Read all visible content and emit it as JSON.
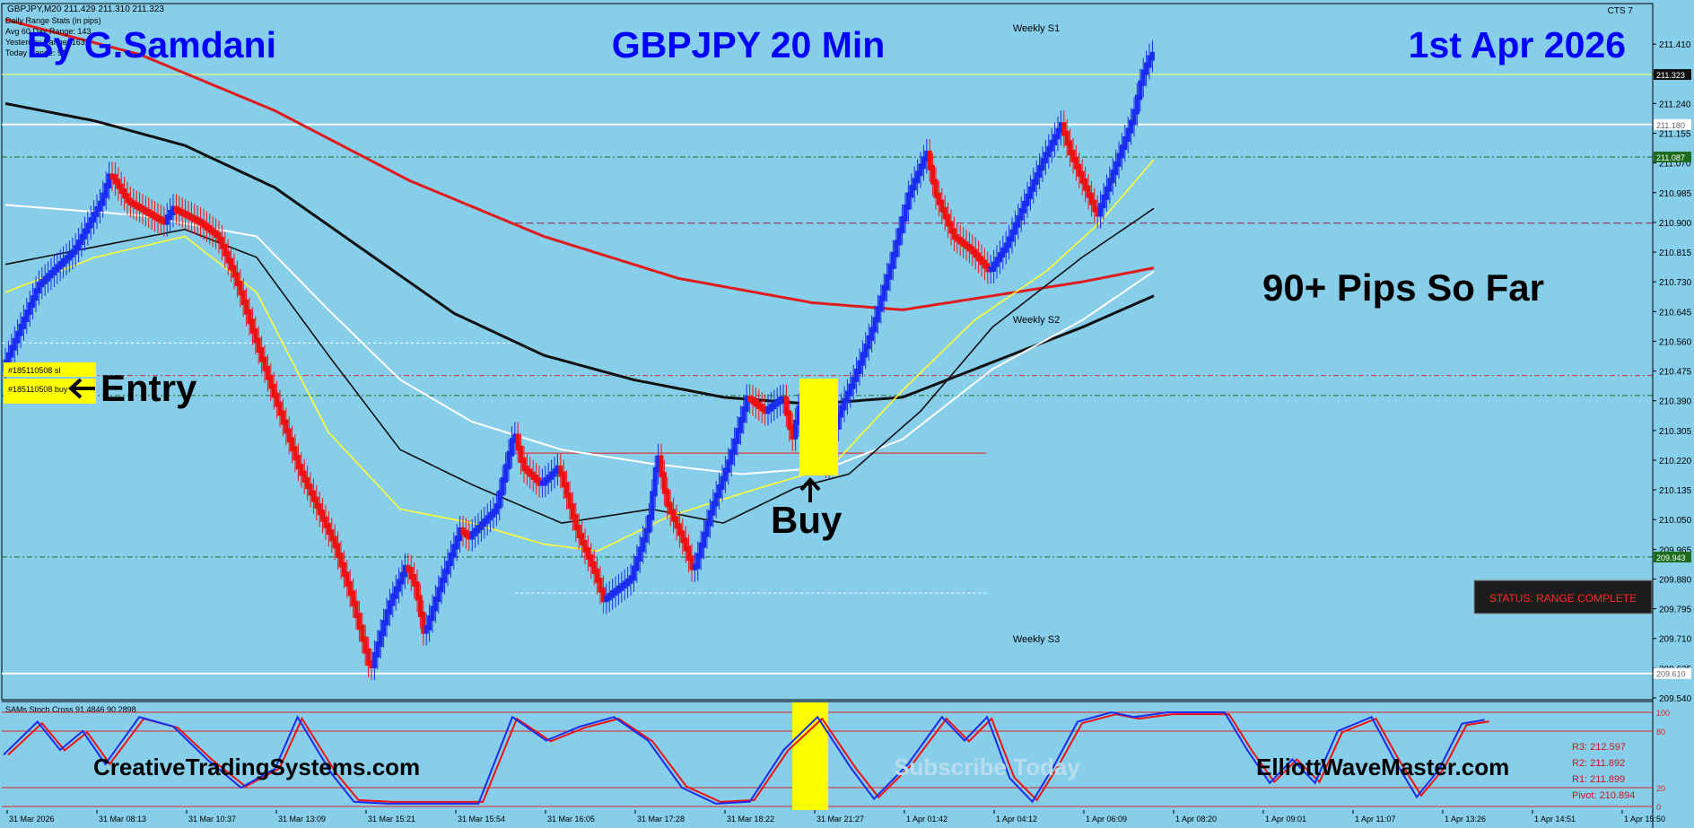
{
  "header": {
    "symbol_line": "GBPJPY,M20  211.429 211.310 211.323",
    "stats_title": "Daily Range Stats (in pips)",
    "stats_avg": "Avg 60 Day Range: 143",
    "stats_yesterday": "Yesterday Range: 163",
    "stats_today": "Today Range: 91",
    "corner_label": "CTS 7"
  },
  "overlay": {
    "author": "By G.Samdani",
    "title": "GBPJPY 20 Min",
    "date": "1st Apr 2026",
    "pips_note": "90+ Pips So Far",
    "entry_label": "Entry",
    "buy_label": "Buy",
    "order_sl": "#185110508 sl",
    "order_buy": "#185110508 buy",
    "status": "STATUS: RANGE COMPLETE",
    "site_left": "CreativeTradingSystems.com",
    "site_right": "ElliottWaveMaster.com",
    "watermark": "Subscribe Today"
  },
  "levels": {
    "weekly_s1": "Weekly S1",
    "weekly_s2": "Weekly S2",
    "weekly_s3": "Weekly S3"
  },
  "colors": {
    "background": "#87ceeb",
    "bull": "#1a2cf0",
    "bear": "#ee1111",
    "title": "#0000ff",
    "status_bg": "#1c1c1c",
    "status_text": "#ff2a2a"
  },
  "chart_data": {
    "type": "candlestick",
    "ylim": [
      209.54,
      211.495
    ],
    "yticks": [
      "211.410",
      "211.325",
      "211.240",
      "211.155",
      "211.070",
      "210.985",
      "210.900",
      "210.815",
      "210.730",
      "210.645",
      "210.560",
      "210.475",
      "210.390",
      "210.305",
      "210.220",
      "210.135",
      "210.050",
      "209.965",
      "209.880",
      "209.795",
      "209.710",
      "209.625",
      "209.540"
    ],
    "price_tags": [
      {
        "label": "211.323",
        "value": 211.323,
        "bg": "#111111",
        "fg": "#ffffff"
      },
      {
        "label": "211.180",
        "value": 211.18,
        "bg": "#ffffff",
        "fg": "#666666"
      },
      {
        "label": "211.087",
        "value": 211.087,
        "bg": "#1d6b1d",
        "fg": "#ffffff"
      },
      {
        "label": "209.943",
        "value": 209.943,
        "bg": "#1d6b1d",
        "fg": "#ffffff"
      },
      {
        "label": "209.610",
        "value": 209.61,
        "bg": "#ffffff",
        "fg": "#666666"
      }
    ],
    "xticks": [
      "31 Mar 2026",
      "31 Mar 08:13",
      "31 Mar 10:37",
      "31 Mar 13:09",
      "31 Mar 15:21",
      "31 Mar 15:54",
      "31 Mar 16:05",
      "31 Mar 17:28",
      "31 Mar 18:22",
      "31 Mar 21:27",
      "1 Apr 01:42",
      "1 Apr 04:12",
      "1 Apr 06:09",
      "1 Apr 08:20",
      "1 Apr 09:01",
      "1 Apr 11:07",
      "1 Apr 13:26",
      "1 Apr 14:51",
      "1 Apr 15:50"
    ],
    "price_path": [
      [
        0,
        210.48
      ],
      [
        4,
        210.72
      ],
      [
        8,
        210.82
      ],
      [
        11,
        210.96
      ],
      [
        12,
        211.04
      ],
      [
        14,
        210.96
      ],
      [
        18,
        210.9
      ],
      [
        19,
        210.94
      ],
      [
        22,
        210.9
      ],
      [
        24,
        210.86
      ],
      [
        26,
        210.74
      ],
      [
        29,
        210.5
      ],
      [
        33,
        210.2
      ],
      [
        37,
        209.98
      ],
      [
        39,
        209.82
      ],
      [
        41,
        209.62
      ],
      [
        43,
        209.8
      ],
      [
        45,
        209.92
      ],
      [
        46,
        209.86
      ],
      [
        47,
        209.72
      ],
      [
        49,
        209.88
      ],
      [
        51,
        210.02
      ],
      [
        52,
        210.0
      ],
      [
        55,
        210.08
      ],
      [
        57,
        210.3
      ],
      [
        58,
        210.2
      ],
      [
        60,
        210.15
      ],
      [
        62,
        210.2
      ],
      [
        64,
        210.02
      ],
      [
        66,
        209.9
      ],
      [
        67,
        209.82
      ],
      [
        69,
        209.86
      ],
      [
        70,
        209.88
      ],
      [
        72,
        210.04
      ],
      [
        73,
        210.24
      ],
      [
        74,
        210.1
      ],
      [
        76,
        209.98
      ],
      [
        77,
        209.9
      ],
      [
        79,
        210.08
      ],
      [
        81,
        210.22
      ],
      [
        83,
        210.4
      ],
      [
        85,
        210.36
      ],
      [
        87,
        210.4
      ],
      [
        88,
        210.28
      ],
      [
        89,
        210.4
      ],
      [
        90,
        210.3
      ],
      [
        92,
        210.2
      ],
      [
        93,
        210.34
      ],
      [
        95,
        210.46
      ],
      [
        97,
        210.6
      ],
      [
        99,
        210.78
      ],
      [
        101,
        210.98
      ],
      [
        103,
        211.1
      ],
      [
        104,
        210.98
      ],
      [
        106,
        210.86
      ],
      [
        108,
        210.82
      ],
      [
        110,
        210.76
      ],
      [
        112,
        210.84
      ],
      [
        114,
        210.96
      ],
      [
        116,
        211.08
      ],
      [
        118,
        211.18
      ],
      [
        119,
        211.1
      ],
      [
        121,
        210.98
      ],
      [
        122,
        210.92
      ],
      [
        124,
        211.06
      ],
      [
        126,
        211.2
      ],
      [
        127,
        211.32
      ],
      [
        128,
        211.38
      ]
    ],
    "ema_red": [
      [
        0,
        211.48
      ],
      [
        15,
        211.38
      ],
      [
        30,
        211.22
      ],
      [
        45,
        211.02
      ],
      [
        60,
        210.86
      ],
      [
        75,
        210.74
      ],
      [
        90,
        210.67
      ],
      [
        100,
        210.65
      ],
      [
        110,
        210.69
      ],
      [
        120,
        210.73
      ],
      [
        128,
        210.77
      ]
    ],
    "ema_black_thick": [
      [
        0,
        211.24
      ],
      [
        10,
        211.19
      ],
      [
        20,
        211.12
      ],
      [
        30,
        211.0
      ],
      [
        40,
        210.82
      ],
      [
        50,
        210.64
      ],
      [
        60,
        210.52
      ],
      [
        70,
        210.45
      ],
      [
        80,
        210.4
      ],
      [
        90,
        210.38
      ],
      [
        100,
        210.4
      ],
      [
        110,
        210.5
      ],
      [
        120,
        210.6
      ],
      [
        128,
        210.69
      ]
    ],
    "ema_white": [
      [
        0,
        210.95
      ],
      [
        15,
        210.92
      ],
      [
        28,
        210.86
      ],
      [
        36,
        210.65
      ],
      [
        44,
        210.45
      ],
      [
        52,
        210.33
      ],
      [
        62,
        210.25
      ],
      [
        72,
        210.21
      ],
      [
        82,
        210.18
      ],
      [
        92,
        210.2
      ],
      [
        100,
        210.28
      ],
      [
        110,
        210.48
      ],
      [
        120,
        210.62
      ],
      [
        128,
        210.76
      ]
    ],
    "ema_black_thin": [
      [
        0,
        210.78
      ],
      [
        12,
        210.84
      ],
      [
        20,
        210.88
      ],
      [
        28,
        210.8
      ],
      [
        36,
        210.52
      ],
      [
        44,
        210.25
      ],
      [
        52,
        210.15
      ],
      [
        62,
        210.04
      ],
      [
        72,
        210.08
      ],
      [
        80,
        210.04
      ],
      [
        88,
        210.14
      ],
      [
        94,
        210.18
      ],
      [
        102,
        210.36
      ],
      [
        110,
        210.6
      ],
      [
        120,
        210.8
      ],
      [
        128,
        210.94
      ]
    ],
    "ema_yellow": [
      [
        0,
        210.7
      ],
      [
        10,
        210.8
      ],
      [
        20,
        210.86
      ],
      [
        28,
        210.7
      ],
      [
        36,
        210.3
      ],
      [
        44,
        210.08
      ],
      [
        52,
        210.04
      ],
      [
        60,
        209.98
      ],
      [
        66,
        209.96
      ],
      [
        74,
        210.06
      ],
      [
        84,
        210.14
      ],
      [
        92,
        210.2
      ],
      [
        100,
        210.42
      ],
      [
        108,
        210.62
      ],
      [
        116,
        210.76
      ],
      [
        122,
        210.9
      ],
      [
        128,
        211.08
      ]
    ],
    "hlines": [
      {
        "value": 211.323,
        "color": "#ffff55",
        "dash": "",
        "width": 1
      },
      {
        "value": 211.18,
        "color": "#ffffff",
        "dash": "",
        "width": 2
      },
      {
        "value": 211.087,
        "color": "#1d6b1d",
        "dash": "6,3,2,3",
        "width": 1
      },
      {
        "value": 210.898,
        "color": "#9b1c4a",
        "dash": "8,4",
        "width": 1,
        "from": 0.36
      },
      {
        "value": 210.555,
        "color": "#ffffff",
        "dash": "3,3",
        "width": 1,
        "to": 0.36
      },
      {
        "value": 210.462,
        "color": "#cc3333",
        "dash": "6,3,2,3",
        "width": 1
      },
      {
        "value": 210.405,
        "color": "#1d6b1d",
        "dash": "6,3,2,3",
        "width": 1
      },
      {
        "value": 210.24,
        "color": "#ee1111",
        "dash": "",
        "width": 1,
        "from": 0.36,
        "to": 0.69
      },
      {
        "value": 209.943,
        "color": "#1d6b1d",
        "dash": "6,3,2,3",
        "width": 1
      },
      {
        "value": 209.84,
        "color": "#ffffff",
        "dash": "3,3",
        "width": 1,
        "from": 0.36,
        "to": 0.69
      },
      {
        "value": 209.61,
        "color": "#ffffff",
        "dash": "",
        "width": 2
      }
    ],
    "osc": {
      "label": "SAMs Stoch Cross 91.4846 90.2898",
      "ylim": [
        0,
        100
      ],
      "levels": [
        "100",
        "80",
        "20",
        "0"
      ],
      "pivots": [
        "R3: 212.597",
        "R2: 211.892",
        "R1: 211.899",
        "Pivot: 210.894"
      ],
      "path": [
        [
          0,
          55
        ],
        [
          3,
          90
        ],
        [
          5,
          60
        ],
        [
          7,
          80
        ],
        [
          9,
          45
        ],
        [
          12,
          95
        ],
        [
          15,
          85
        ],
        [
          18,
          50
        ],
        [
          21,
          20
        ],
        [
          24,
          40
        ],
        [
          26,
          95
        ],
        [
          29,
          35
        ],
        [
          31,
          5
        ],
        [
          34,
          3
        ],
        [
          38,
          3
        ],
        [
          42,
          3
        ],
        [
          45,
          95
        ],
        [
          48,
          70
        ],
        [
          51,
          85
        ],
        [
          54,
          95
        ],
        [
          57,
          70
        ],
        [
          60,
          20
        ],
        [
          63,
          3
        ],
        [
          66,
          5
        ],
        [
          69,
          60
        ],
        [
          72,
          95
        ],
        [
          75,
          40
        ],
        [
          77,
          8
        ],
        [
          80,
          45
        ],
        [
          83,
          95
        ],
        [
          85,
          70
        ],
        [
          87,
          95
        ],
        [
          89,
          30
        ],
        [
          91,
          5
        ],
        [
          93,
          45
        ],
        [
          95,
          90
        ],
        [
          98,
          100
        ],
        [
          100,
          95
        ],
        [
          103,
          100
        ],
        [
          108,
          100
        ],
        [
          110,
          60
        ],
        [
          112,
          25
        ],
        [
          114,
          50
        ],
        [
          116,
          25
        ],
        [
          118,
          80
        ],
        [
          121,
          95
        ],
        [
          123,
          50
        ],
        [
          125,
          10
        ],
        [
          127,
          40
        ],
        [
          129,
          88
        ],
        [
          131,
          92
        ]
      ]
    }
  }
}
